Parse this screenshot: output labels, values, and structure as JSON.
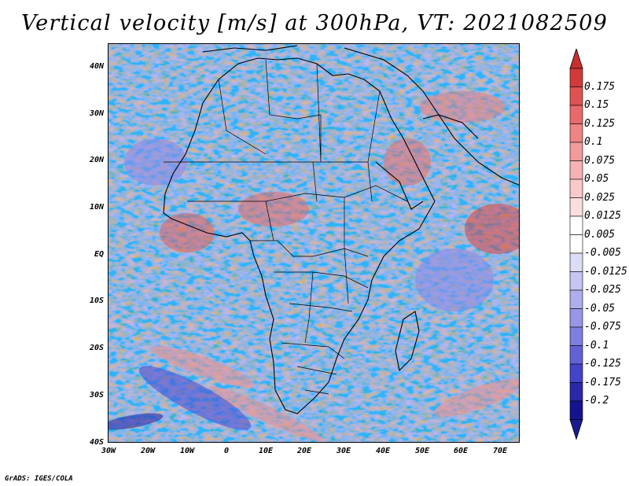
{
  "title": "Vertical velocity [m/s] at 300hPa, VT: 2021082509",
  "credit": "GrADS: IGES/COLA",
  "lat_labels": [
    "40N",
    "30N",
    "20N",
    "10N",
    "EQ",
    "10S",
    "20S",
    "30S",
    "40S"
  ],
  "lon_labels": [
    "30W",
    "20W",
    "10W",
    "0",
    "10E",
    "20E",
    "30E",
    "40E",
    "50E",
    "60E",
    "70E"
  ],
  "colorbar": {
    "labels": [
      "0.175",
      "0.15",
      "0.125",
      "0.1",
      "0.075",
      "0.05",
      "0.025",
      "0.0125",
      "0.005",
      "-0.005",
      "-0.0125",
      "-0.025",
      "-0.05",
      "-0.075",
      "-0.1",
      "-0.125",
      "-0.175",
      "-0.2"
    ],
    "colors": [
      "#d23a3a",
      "#e05252",
      "#e86a6a",
      "#ee8484",
      "#f29b9b",
      "#f6b3b3",
      "#f9c9c9",
      "#fcdede",
      "#ffffff",
      "#ffffff",
      "#dcdcf6",
      "#c6c6f2",
      "#aeaeee",
      "#9797e8",
      "#7f7fe0",
      "#6262d6",
      "#4444c8",
      "#2a2aa8",
      "#141490"
    ],
    "top_triangle_color": "#c83030",
    "bottom_triangle_color": "#1a1a90"
  }
}
